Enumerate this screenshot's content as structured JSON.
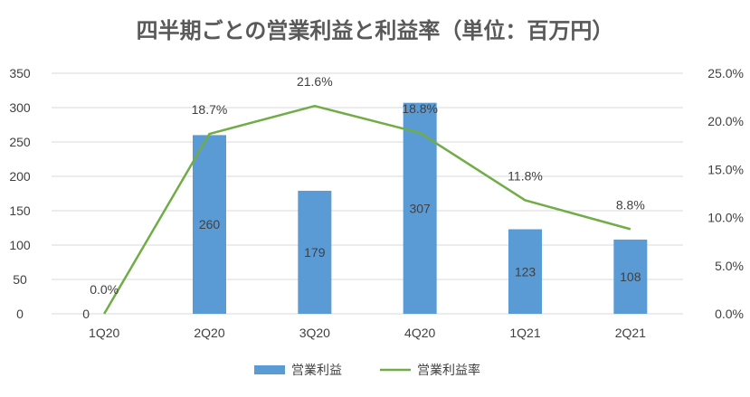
{
  "chart_data": {
    "type": "bar",
    "title": "四半期ごとの営業利益と利益率（単位：百万円）",
    "categories": [
      "1Q20",
      "2Q20",
      "3Q20",
      "4Q20",
      "1Q21",
      "2Q21"
    ],
    "series": [
      {
        "name": "営業利益",
        "type": "bar",
        "axis": "left",
        "color": "#5b9bd5",
        "values": [
          0,
          260,
          179,
          307,
          123,
          108
        ]
      },
      {
        "name": "営業利益率",
        "type": "line",
        "axis": "right",
        "color": "#70ad47",
        "values": [
          0.0,
          18.7,
          21.6,
          18.8,
          11.8,
          8.8
        ]
      }
    ],
    "bar_labels": [
      "0",
      "260",
      "179",
      "307",
      "123",
      "108"
    ],
    "line_labels": [
      "0.0%",
      "18.7%",
      "21.6%",
      "18.8%",
      "11.8%",
      "8.8%"
    ],
    "ylim_left": [
      0,
      350
    ],
    "yticks_left": [
      "0",
      "50",
      "100",
      "150",
      "200",
      "250",
      "300",
      "350"
    ],
    "ylim_right": [
      0,
      25
    ],
    "yticks_right": [
      "0.0%",
      "5.0%",
      "10.0%",
      "15.0%",
      "20.0%",
      "25.0%"
    ],
    "xlabel": "",
    "ylabel": "",
    "grid": true,
    "legend": "bottom-center"
  }
}
